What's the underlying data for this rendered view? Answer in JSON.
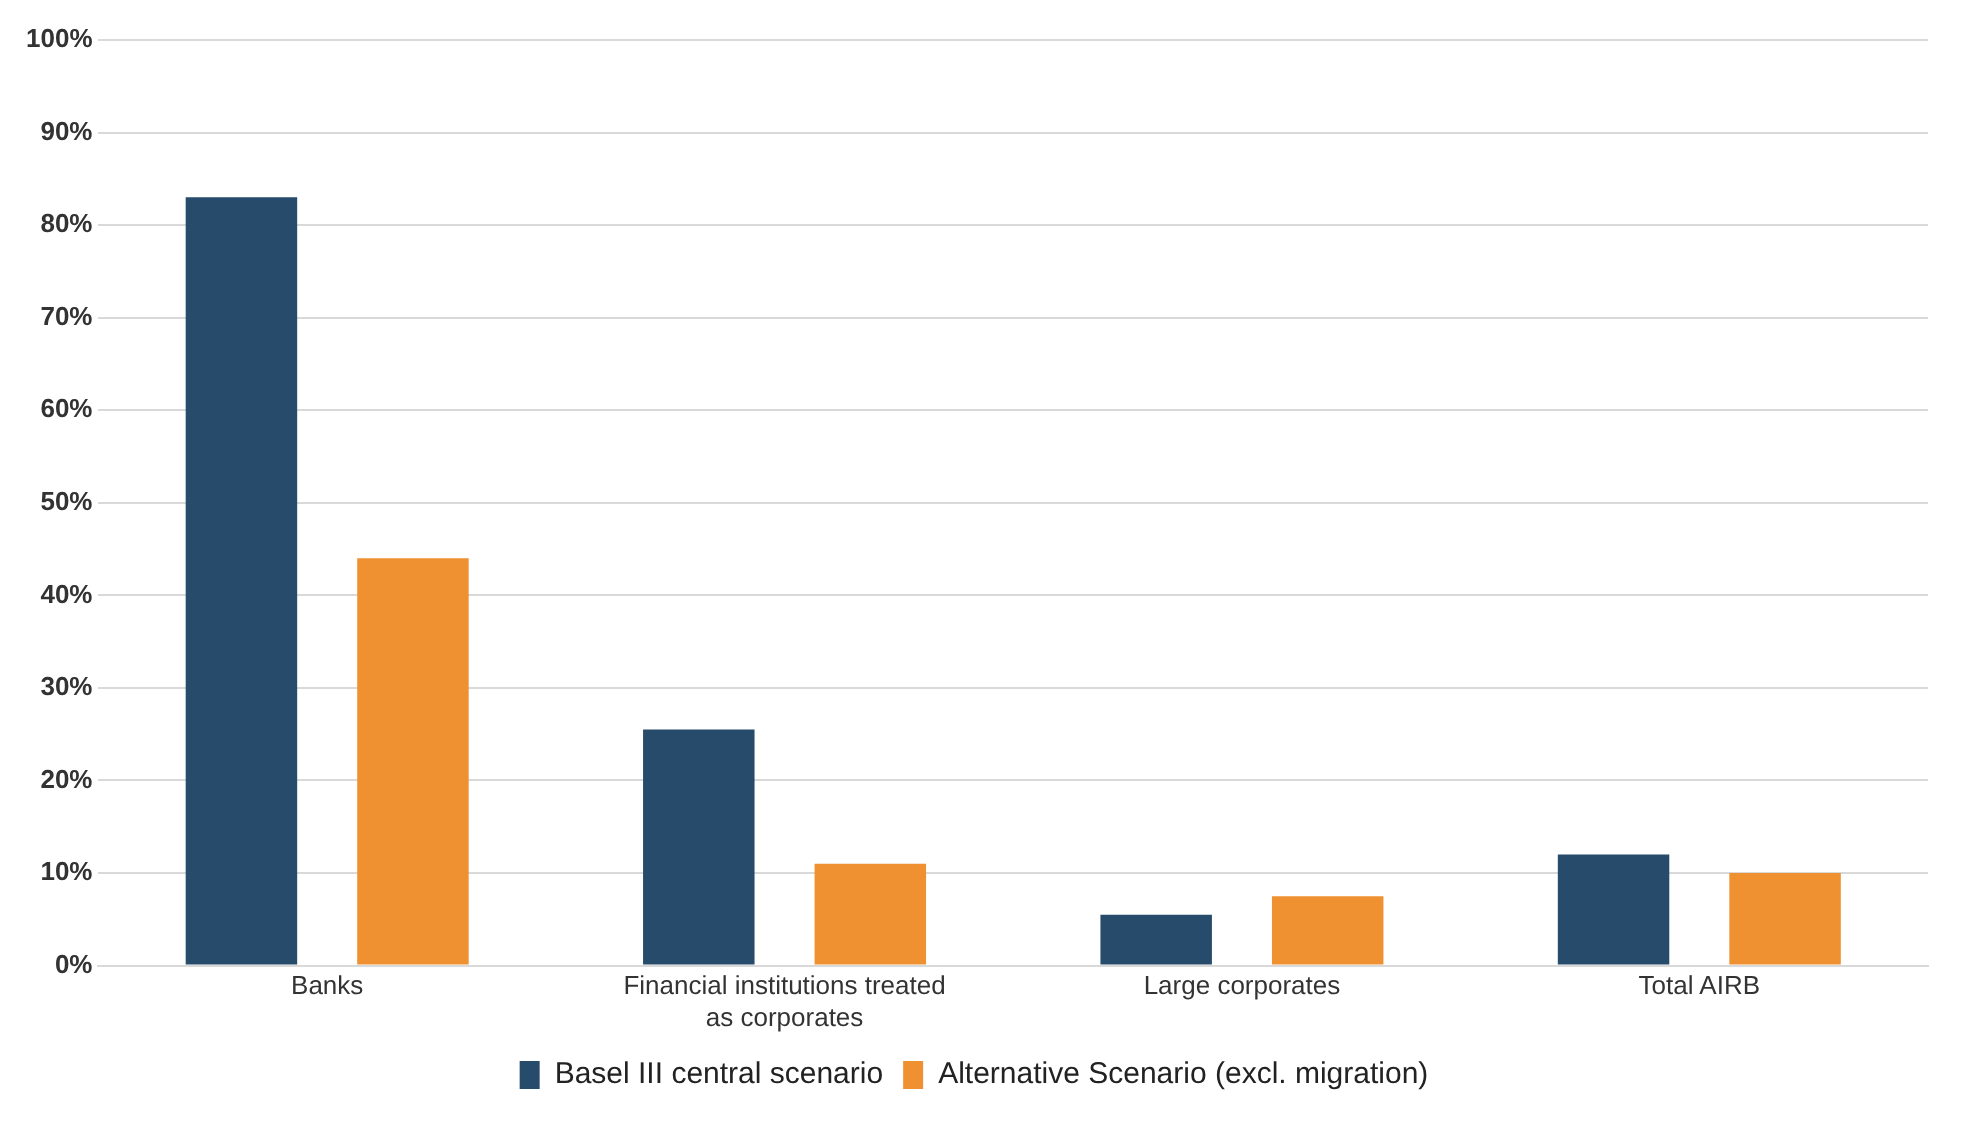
{
  "chart_data": {
    "type": "bar",
    "categories": [
      "Banks",
      "Financial institutions treated as corporates",
      "Large corporates",
      "Total AIRB"
    ],
    "series": [
      {
        "name": "Basel III central scenario",
        "color": "#264b6b",
        "values": [
          83,
          25.5,
          5.5,
          12
        ]
      },
      {
        "name": "Alternative Scenario (excl. migration)",
        "color": "#ef9130",
        "values": [
          44,
          11,
          7.5,
          10
        ]
      }
    ],
    "ylim": [
      0,
      100
    ],
    "yticks": [
      {
        "value": 0,
        "label": "0%"
      },
      {
        "value": 10,
        "label": "10%"
      },
      {
        "value": 20,
        "label": "20%"
      },
      {
        "value": 30,
        "label": "30%"
      },
      {
        "value": 40,
        "label": "40%"
      },
      {
        "value": 50,
        "label": "50%"
      },
      {
        "value": 60,
        "label": "60%"
      },
      {
        "value": 70,
        "label": "70%"
      },
      {
        "value": 80,
        "label": "80%"
      },
      {
        "value": 90,
        "label": "90%"
      },
      {
        "value": 100,
        "label": "100%"
      }
    ],
    "grid": "y",
    "legend": "bottom"
  }
}
